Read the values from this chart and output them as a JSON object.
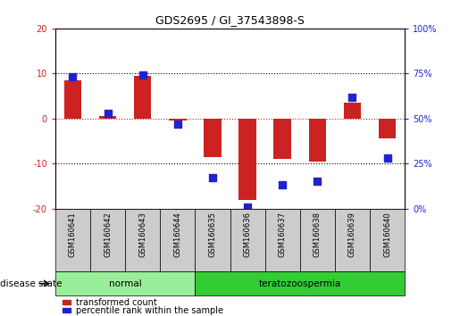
{
  "title": "GDS2695 / GI_37543898-S",
  "samples": [
    "GSM160641",
    "GSM160642",
    "GSM160643",
    "GSM160644",
    "GSM160635",
    "GSM160636",
    "GSM160637",
    "GSM160638",
    "GSM160639",
    "GSM160640"
  ],
  "transformed_count": [
    8.5,
    0.5,
    9.5,
    -0.5,
    -8.5,
    -18.0,
    -9.0,
    -9.5,
    3.5,
    -4.5
  ],
  "percentile_rank": [
    73,
    53,
    74,
    47,
    17,
    1,
    13,
    15,
    62,
    28
  ],
  "red_color": "#cc2222",
  "blue_color": "#2222cc",
  "ylim_left": [
    -20,
    20
  ],
  "ylim_right": [
    0,
    100
  ],
  "y_ticks_left": [
    -20,
    -10,
    0,
    10,
    20
  ],
  "y_ticks_right": [
    0,
    25,
    50,
    75,
    100
  ],
  "ytick_labels_left": [
    "-20",
    "-10",
    "0",
    "10",
    "20"
  ],
  "ytick_labels_right": [
    "0%",
    "25%",
    "50%",
    "75%",
    "100%"
  ],
  "groups": [
    {
      "label": "normal",
      "start": 0,
      "end": 4,
      "color": "#99ee99"
    },
    {
      "label": "teratozoospermia",
      "start": 4,
      "end": 10,
      "color": "#33cc33"
    }
  ],
  "disease_state_label": "disease state",
  "legend_items": [
    {
      "label": "transformed count",
      "color": "#cc2222"
    },
    {
      "label": "percentile rank within the sample",
      "color": "#2222cc"
    }
  ],
  "bar_width": 0.5,
  "dot_size": 30,
  "normal_color": "#bbeebb",
  "terato_color": "#44cc44"
}
